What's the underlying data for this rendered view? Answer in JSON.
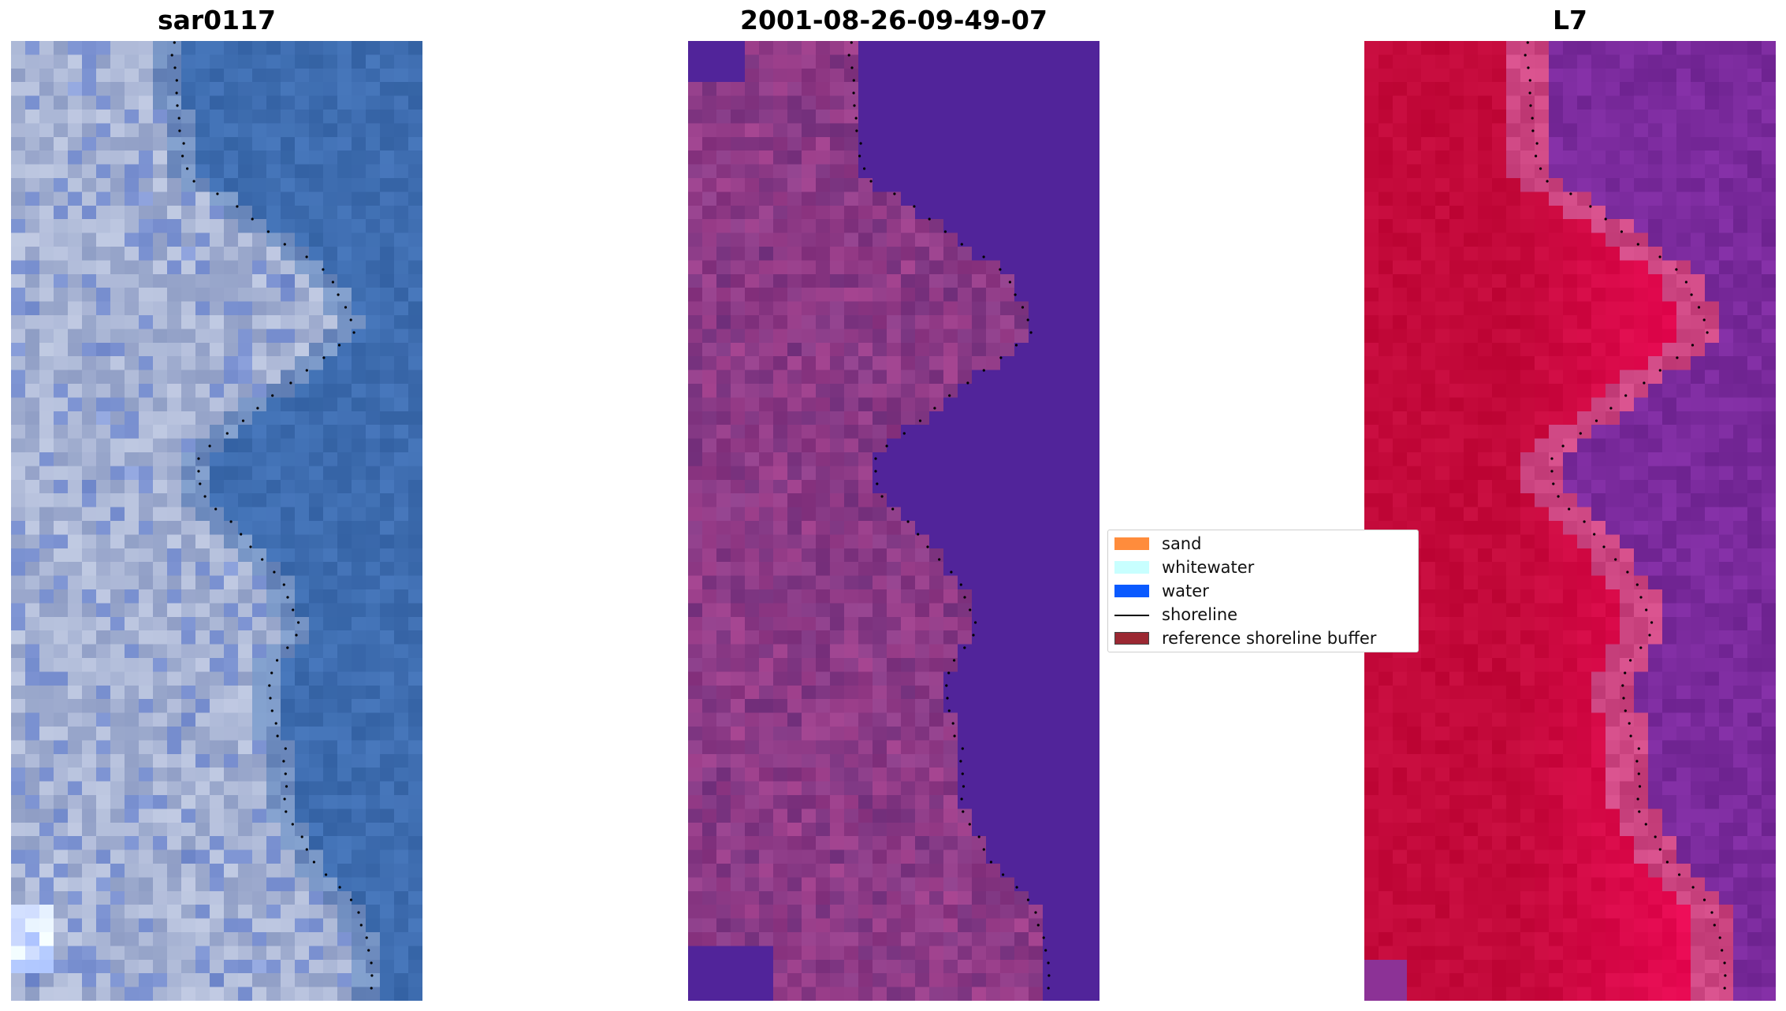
{
  "panels": [
    {
      "title": "sar0117",
      "colormap": "rgb"
    },
    {
      "title": "2001-08-26-09-49-07",
      "colormap": "classified"
    },
    {
      "title": "L7",
      "colormap": "ndwi"
    }
  ],
  "legend": {
    "items": [
      {
        "label": "sand",
        "color": "#ff8c3c",
        "kind": "patch"
      },
      {
        "label": "whitewater",
        "color": "#c8ffff",
        "kind": "patch"
      },
      {
        "label": "water",
        "color": "#0a5aff",
        "kind": "patch"
      },
      {
        "label": "shoreline",
        "color": "#000000",
        "kind": "line"
      },
      {
        "label": "reference shoreline buffer",
        "color": "#9b2832",
        "kind": "patch"
      }
    ]
  },
  "colors": {
    "water_rgb": "#3e6db0",
    "land_rgb": "#a8b4d4",
    "water_class": "#51249a",
    "land_class": "#8c3a86",
    "water_index": "#7a2a9c",
    "land_index": "#c3093a"
  }
}
